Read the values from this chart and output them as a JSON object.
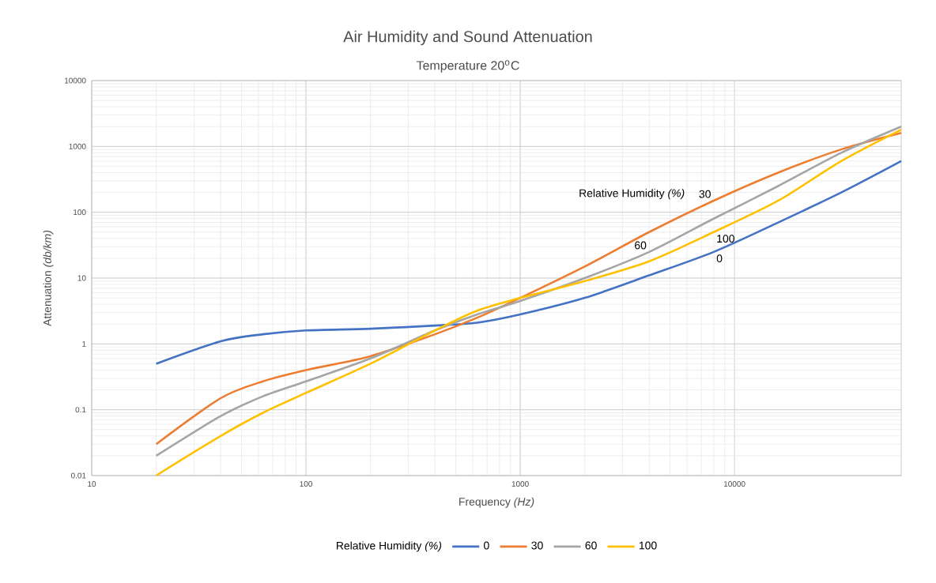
{
  "chart_data": {
    "type": "line",
    "title": "Air Humidity and Sound Attenuation",
    "subtitle": "Temperature 20$^{o}$C",
    "xlabel": "Frequency *(Hz)*",
    "ylabel": "Attenuation *(db/km)*",
    "legend_title": "Relative Humidity *(%)*",
    "log": "xy",
    "xlim": [
      10,
      60000
    ],
    "ylim": [
      0.01,
      10000
    ],
    "xticks": [
      10,
      100,
      1000,
      10000
    ],
    "yticks": [
      0.01,
      0.1,
      1,
      10,
      100,
      1000,
      10000
    ],
    "grid": true,
    "legend": "bottom",
    "marker": "none",
    "line_style": "solid",
    "x": [
      20,
      40,
      63,
      100,
      200,
      400,
      630,
      1000,
      2000,
      4000,
      8000,
      16000,
      31500,
      60000
    ],
    "series": [
      {
        "name": "0",
        "color": "#4472c4",
        "values": [
          0.5,
          1.1,
          1.4,
          1.6,
          1.7,
          1.9,
          2.1,
          2.8,
          5,
          11,
          25,
          70,
          200,
          600
        ]
      },
      {
        "name": "30",
        "color": "#ed7d31",
        "values": [
          0.03,
          0.15,
          0.27,
          0.4,
          0.65,
          1.4,
          2.5,
          5,
          15,
          50,
          150,
          400,
          900,
          1600
        ]
      },
      {
        "name": "60",
        "color": "#a5a5a5",
        "values": [
          0.02,
          0.08,
          0.16,
          0.27,
          0.6,
          1.6,
          2.8,
          4.5,
          10,
          25,
          80,
          250,
          800,
          2000
        ]
      },
      {
        "name": "100",
        "color": "#ffc000",
        "values": [
          0.01,
          0.04,
          0.09,
          0.18,
          0.5,
          1.6,
          3.2,
          5,
          9,
          18,
          50,
          150,
          600,
          1800
        ]
      }
    ]
  }
}
